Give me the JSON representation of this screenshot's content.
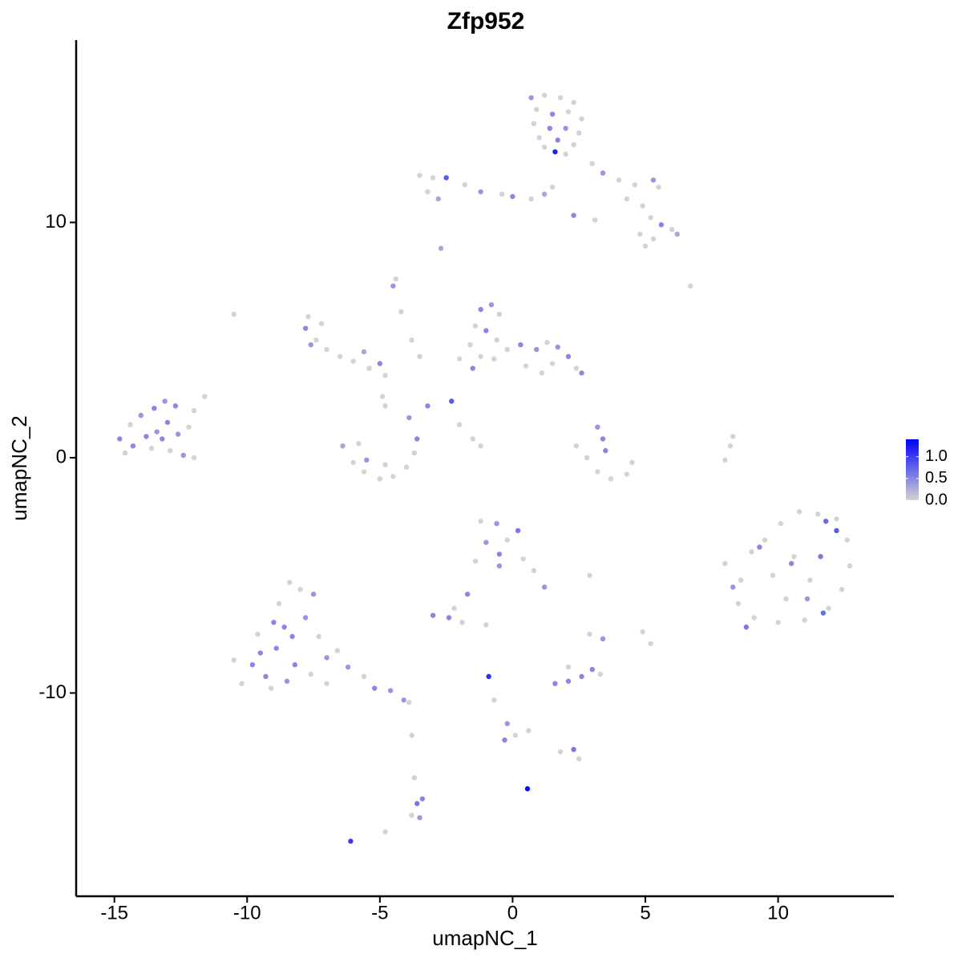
{
  "chart_data": {
    "type": "scatter",
    "title": "Zfp952",
    "x_label": "umapNC_1",
    "y_label": "umapNC_2",
    "xlim": [
      -16.44,
      14.36
    ],
    "ylim": [
      -18.64,
      17.75
    ],
    "xticks": [
      -15,
      -10,
      -5,
      0,
      5,
      10
    ],
    "yticks": [
      -10,
      0,
      10
    ],
    "color_low": "#d3d3d3",
    "color_high": "#0000ff",
    "color_lim": [
      0,
      1.4
    ],
    "color_ticks": [
      {
        "value": 0,
        "label": "0.0"
      },
      {
        "value": 0.5,
        "label": "0.5"
      },
      {
        "value": 1,
        "label": "1.0"
      }
    ],
    "x": [
      0.7,
      1.2,
      1.8,
      2.3,
      0.9,
      1.5,
      2.1,
      2.6,
      0.8,
      1.4,
      2.0,
      2.5,
      1.0,
      1.7,
      2.3,
      1.6,
      2.0,
      1.2,
      3.0,
      3.4,
      4.0,
      4.6,
      5.3,
      5.5,
      4.3,
      4.9,
      5.2,
      5.6,
      6.0,
      4.8,
      5.3,
      6.2,
      5.0,
      -3.5,
      -3.0,
      -2.5,
      -3.2,
      -2.8,
      -1.8,
      -1.2,
      -0.4,
      0.0,
      0.7,
      1.2,
      1.5,
      2.3,
      3.1,
      -2.7,
      6.7,
      -14.8,
      -14.4,
      -14.0,
      -13.5,
      -13.1,
      -12.7,
      -14.3,
      -13.8,
      -13.4,
      -13.0,
      -12.6,
      -12.2,
      -13.6,
      -12.9,
      -12.4,
      -12.0,
      -14.6,
      -12.0,
      -11.6,
      -13.2,
      -7.7,
      -7.2,
      -7.8,
      -7.4,
      -7.6,
      -7.0,
      -6.5,
      -6.0,
      -5.4,
      -5.0,
      -4.8,
      -5.6,
      -4.5,
      -4.4,
      -4.2,
      -3.8,
      -3.5,
      -10.5,
      -6.4,
      -6.0,
      -5.6,
      -5.0,
      -4.5,
      -4.0,
      -3.7,
      -3.6,
      -3.9,
      -5.5,
      -4.8,
      -5.8,
      -4.9,
      -4.8,
      -3.2,
      -2.3,
      -2.0,
      -1.5,
      -1.2,
      -1.2,
      -0.8,
      -0.5,
      -1.4,
      -1.0,
      -0.6,
      -1.6,
      -1.2,
      -1.5,
      -0.7,
      -0.2,
      0.3,
      0.9,
      1.3,
      1.7,
      2.1,
      2.4,
      2.6,
      1.5,
      0.5,
      -2.0,
      1.1,
      2.4,
      2.8,
      3.2,
      3.7,
      4.3,
      4.5,
      3.5,
      3.2,
      3.4,
      8.0,
      8.2,
      8.3,
      8.0,
      8.6,
      9.0,
      9.5,
      10.1,
      10.8,
      11.5,
      12.2,
      12.6,
      12.7,
      12.4,
      11.9,
      11.0,
      10.0,
      9.1,
      8.5,
      9.8,
      10.6,
      11.2,
      10.3,
      9.3,
      11.8,
      12.2,
      11.6,
      10.5,
      8.8,
      11.7,
      11.1,
      8.3,
      -10.5,
      -10.2,
      -9.6,
      -9.8,
      -9.3,
      -8.9,
      -8.6,
      -8.8,
      -8.4,
      -8.0,
      -7.5,
      -7.8,
      -7.3,
      -7.0,
      -8.2,
      -7.6,
      -9.1,
      -9.5,
      -8.5,
      -7.0,
      -6.6,
      -6.2,
      -5.6,
      -5.2,
      -4.6,
      -4.1,
      -3.9,
      -8.3,
      -9.0,
      -1.2,
      -0.6,
      0.2,
      -1.0,
      -0.5,
      -0.2,
      0.4,
      0.8,
      1.2,
      -0.5,
      -1.4,
      -1.7,
      -3.0,
      -2.4,
      -2.2,
      -1.9,
      -1.0,
      2.9,
      3.4,
      4.9,
      5.2,
      2.9,
      1.6,
      2.1,
      2.6,
      3.0,
      3.3,
      2.1,
      -0.9,
      -0.7,
      -0.2,
      -0.3,
      0.1,
      0.6,
      1.8,
      2.3,
      2.5,
      -3.8,
      -3.7,
      -3.6,
      -3.4,
      -3.5,
      -3.8,
      -6.1,
      -4.8,
      0.56
    ],
    "y": [
      15.3,
      15.4,
      15.3,
      15.1,
      14.8,
      14.6,
      14.7,
      14.4,
      14.2,
      14.0,
      14.0,
      13.8,
      13.6,
      13.5,
      13.3,
      13.0,
      12.9,
      13.2,
      12.5,
      12.1,
      11.8,
      11.6,
      11.8,
      11.5,
      11.0,
      10.7,
      10.2,
      9.9,
      9.7,
      9.5,
      9.3,
      9.5,
      9.0,
      12.0,
      11.9,
      11.9,
      11.3,
      11.0,
      11.6,
      11.3,
      11.2,
      11.1,
      11.0,
      11.2,
      11.5,
      10.3,
      10.1,
      8.9,
      7.3,
      0.8,
      1.4,
      1.8,
      2.1,
      2.4,
      2.2,
      0.5,
      0.9,
      1.1,
      1.5,
      1.0,
      1.3,
      0.4,
      0.3,
      0.1,
      0.0,
      0.2,
      2.0,
      2.6,
      0.8,
      6.0,
      5.7,
      5.5,
      5.0,
      4.8,
      4.6,
      4.3,
      4.1,
      3.8,
      4.0,
      3.5,
      4.5,
      7.3,
      7.6,
      6.2,
      5.0,
      4.3,
      6.1,
      0.5,
      -0.2,
      -0.6,
      -0.9,
      -0.8,
      -0.4,
      0.2,
      0.8,
      1.7,
      -0.1,
      -0.3,
      0.6,
      2.6,
      2.2,
      2.2,
      2.4,
      1.4,
      0.8,
      0.5,
      6.3,
      6.5,
      6.1,
      5.6,
      5.4,
      5.0,
      4.8,
      4.3,
      3.8,
      4.2,
      4.6,
      4.8,
      4.6,
      4.9,
      4.7,
      4.3,
      3.8,
      3.6,
      4.0,
      3.9,
      4.2,
      3.6,
      0.5,
      0.0,
      -0.6,
      -0.9,
      -0.7,
      -0.2,
      0.3,
      1.3,
      0.8,
      -0.1,
      0.5,
      0.9,
      -4.5,
      -5.2,
      -4.0,
      -3.5,
      -2.8,
      -2.3,
      -2.4,
      -2.6,
      -3.5,
      -4.6,
      -5.6,
      -6.4,
      -6.9,
      -7.0,
      -6.8,
      -6.2,
      -5.0,
      -4.2,
      -5.2,
      -6.0,
      -3.8,
      -2.7,
      -3.1,
      -4.2,
      -4.5,
      -7.2,
      -6.6,
      -6.0,
      -5.5,
      -8.6,
      -9.6,
      -7.5,
      -8.8,
      -9.3,
      -8.1,
      -7.2,
      -6.2,
      -5.3,
      -5.6,
      -5.8,
      -6.8,
      -7.6,
      -8.5,
      -8.8,
      -9.2,
      -9.8,
      -8.3,
      -9.5,
      -9.6,
      -8.2,
      -8.9,
      -9.3,
      -9.8,
      -9.9,
      -10.3,
      -10.4,
      -7.6,
      -7.0,
      -2.7,
      -2.8,
      -3.1,
      -3.6,
      -4.1,
      -3.5,
      -4.3,
      -4.8,
      -5.5,
      -4.6,
      -4.4,
      -5.8,
      -6.7,
      -6.8,
      -6.4,
      -7.0,
      -7.1,
      -7.5,
      -7.7,
      -7.4,
      -7.9,
      -5.0,
      -9.6,
      -9.5,
      -9.3,
      -9.0,
      -9.2,
      -8.9,
      -9.3,
      -10.3,
      -11.3,
      -12.0,
      -11.8,
      -11.6,
      -12.5,
      -12.4,
      -12.8,
      -11.8,
      -13.6,
      -14.7,
      -14.5,
      -15.3,
      -15.2,
      -16.3,
      -15.9,
      -14.07
    ],
    "values": [
      0.4,
      0,
      0,
      0,
      0,
      0.5,
      0,
      0,
      0,
      0.5,
      0.4,
      0,
      0,
      0.5,
      0,
      1.2,
      0,
      0,
      0,
      0.4,
      0,
      0,
      0.4,
      0,
      0,
      0,
      0,
      0.5,
      0,
      0,
      0,
      0.3,
      0,
      0,
      0,
      0.8,
      0,
      0.3,
      0,
      0.4,
      0,
      0.5,
      0,
      0.3,
      0,
      0.5,
      0,
      0.3,
      0,
      0.5,
      0,
      0.4,
      0.5,
      0.4,
      0.5,
      0.5,
      0.5,
      0.4,
      0.5,
      0.4,
      0,
      0,
      0,
      0.4,
      0,
      0,
      0,
      0,
      0.5,
      0,
      0,
      0.5,
      0,
      0.4,
      0,
      0,
      0,
      0,
      0.5,
      0,
      0.3,
      0.4,
      0,
      0,
      0,
      0,
      0,
      0.3,
      0,
      0,
      0,
      0,
      0,
      0,
      0.5,
      0.4,
      0.4,
      0,
      0,
      0,
      0,
      0.5,
      0.8,
      0,
      0,
      0,
      0.5,
      0.4,
      0,
      0,
      0.5,
      0,
      0,
      0,
      0.5,
      0,
      0,
      0.5,
      0.4,
      0,
      0.4,
      0.5,
      0,
      0.5,
      0,
      0,
      0,
      0,
      0,
      0,
      0,
      0,
      0,
      0,
      0.5,
      0.4,
      0.5,
      0,
      0,
      0,
      0,
      0,
      0,
      0,
      0,
      0,
      0,
      0,
      0,
      0,
      0,
      0,
      0,
      0,
      0,
      0,
      0,
      0,
      0,
      0,
      0.5,
      0.7,
      0.8,
      0.6,
      0.5,
      0.6,
      0.7,
      0.4,
      0.4,
      0,
      0,
      0,
      0.5,
      0.5,
      0.5,
      0.5,
      0,
      0,
      0,
      0.4,
      0.4,
      0,
      0.4,
      0.5,
      0,
      0,
      0.5,
      0.4,
      0,
      0,
      0.4,
      0,
      0.5,
      0.4,
      0.4,
      0,
      0.5,
      0.5,
      0,
      0.4,
      0.6,
      0.4,
      0.5,
      0,
      0,
      0,
      0.4,
      0.4,
      0,
      0.5,
      0.5,
      0.5,
      0,
      0,
      0,
      0,
      0.4,
      0,
      0,
      0,
      0.5,
      0.5,
      0.5,
      0.5,
      0,
      0,
      1.1,
      0,
      0.4,
      0.5,
      0,
      0,
      0,
      0.6,
      0,
      0,
      0,
      0.6,
      0.5,
      0.4,
      0,
      1.0,
      0,
      1.35
    ]
  }
}
